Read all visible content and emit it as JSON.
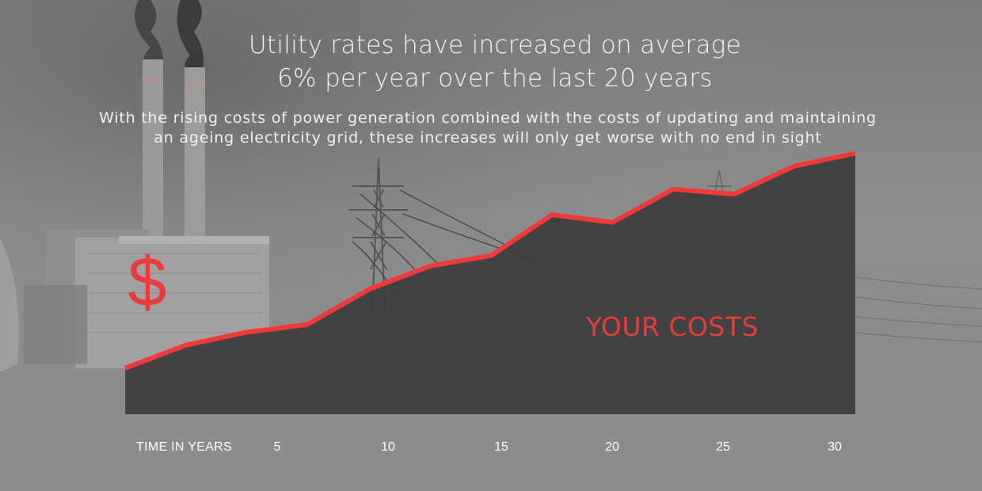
{
  "headline": {
    "line1": "Utility rates have increased on average",
    "line2": "6% per year over the last 20 years"
  },
  "subtitle": {
    "line1": "With the rising costs of power generation combined with the costs of updating and maintaining",
    "line2": "an ageing electricity grid, these increases will only get worse with no end in sight"
  },
  "chart_data": {
    "type": "area",
    "title": "",
    "xlabel": "TIME IN YEARS",
    "ylabel": "$",
    "series_label": "YOUR COSTS",
    "x_ticks": [
      "5",
      "10",
      "15",
      "20",
      "25",
      "30"
    ],
    "xlim": [
      0,
      32.5
    ],
    "ylim": [
      0,
      10
    ],
    "grid": false,
    "x": [
      0,
      2.7,
      5.4,
      8.1,
      10.9,
      13.6,
      16.3,
      19.0,
      21.7,
      24.4,
      27.1,
      29.8,
      32.5
    ],
    "values": [
      1.8,
      2.7,
      3.2,
      3.5,
      4.9,
      5.8,
      6.2,
      7.8,
      7.5,
      8.8,
      8.6,
      9.7,
      10.2
    ],
    "colors": {
      "line": "#f03a3a",
      "fill": "#3c3c3c",
      "accent_text": "#e83b3b",
      "axis_text": "#ffffff"
    }
  }
}
